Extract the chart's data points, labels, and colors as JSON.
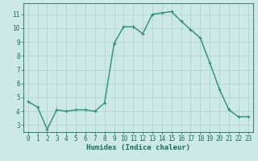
{
  "x": [
    0,
    1,
    2,
    3,
    4,
    5,
    6,
    7,
    8,
    9,
    10,
    11,
    12,
    13,
    14,
    15,
    16,
    17,
    18,
    19,
    20,
    21,
    22,
    23
  ],
  "y": [
    4.7,
    4.3,
    2.7,
    4.1,
    4.0,
    4.1,
    4.1,
    4.0,
    4.6,
    8.9,
    10.1,
    10.1,
    9.6,
    11.0,
    11.1,
    11.2,
    10.5,
    9.9,
    9.3,
    7.5,
    5.6,
    4.1,
    3.6,
    3.6
  ],
  "line_color": "#2e8b7a",
  "marker": "+",
  "marker_size": 3,
  "marker_linewidth": 0.8,
  "bg_color": "#cce9e5",
  "grid_color": "#b0d4d0",
  "xlabel": "Humidex (Indice chaleur)",
  "xlim": [
    -0.5,
    23.5
  ],
  "ylim": [
    2.5,
    11.8
  ],
  "xticks": [
    0,
    1,
    2,
    3,
    4,
    5,
    6,
    7,
    8,
    9,
    10,
    11,
    12,
    13,
    14,
    15,
    16,
    17,
    18,
    19,
    20,
    21,
    22,
    23
  ],
  "yticks": [
    3,
    4,
    5,
    6,
    7,
    8,
    9,
    10,
    11
  ],
  "label_color": "#1a6b5e",
  "tick_color": "#1a6b5e",
  "tick_labelsize": 5.5,
  "xlabel_fontsize": 6.5,
  "line_width": 1.0
}
